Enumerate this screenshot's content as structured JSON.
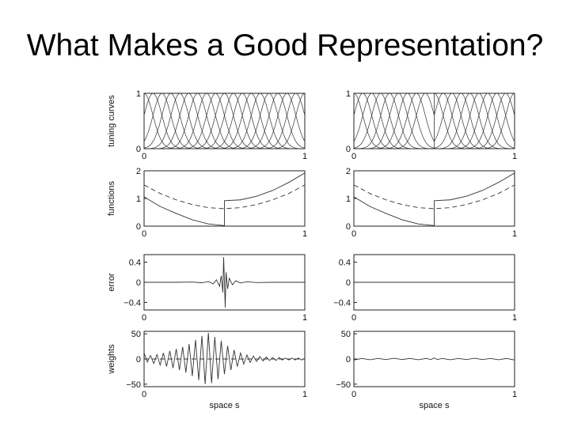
{
  "slide": {
    "title": "What Makes a Good Representation?"
  },
  "chart_data": [
    {
      "type": "line",
      "panel": "tuning-curves-left",
      "ylabel": "tuning curves",
      "xlim": [
        0,
        1
      ],
      "ylim": [
        0,
        1
      ],
      "xticks": [
        "0",
        "1"
      ],
      "yticks": [
        {
          "v": 0,
          "label": "0"
        },
        {
          "v": 1,
          "label": "1"
        }
      ],
      "curve_family": {
        "shape": "gaussian",
        "count": 19,
        "centers_from": 0,
        "centers_to": 1,
        "width": 0.055,
        "peak": 1,
        "discontinuity_at": null
      },
      "series": []
    },
    {
      "type": "line",
      "panel": "tuning-curves-right",
      "ylabel": "",
      "xlim": [
        0,
        1
      ],
      "ylim": [
        0,
        1
      ],
      "xticks": [
        "0",
        "1"
      ],
      "yticks": [
        {
          "v": 0,
          "label": "0"
        },
        {
          "v": 1,
          "label": "1"
        }
      ],
      "curve_family": {
        "shape": "gaussian",
        "count": 19,
        "centers_from": 0,
        "centers_to": 1,
        "width": 0.055,
        "peak": 1,
        "discontinuity_at": 0.5
      },
      "series": []
    },
    {
      "type": "line",
      "panel": "functions-left",
      "ylabel": "functions",
      "xlim": [
        0,
        1
      ],
      "ylim": [
        0,
        2
      ],
      "xticks": [
        "0",
        "1"
      ],
      "yticks": [
        {
          "v": 0,
          "label": "0"
        },
        {
          "v": 1,
          "label": "1"
        },
        {
          "v": 2,
          "label": "2"
        }
      ],
      "series": [
        {
          "style": "solid",
          "x": [
            0,
            0.1,
            0.2,
            0.3,
            0.4,
            0.5,
            0.5,
            0.6,
            0.7,
            0.8,
            0.9,
            1.0
          ],
          "y": [
            1.06,
            0.71,
            0.46,
            0.23,
            0.08,
            0.02,
            0.92,
            0.95,
            1.08,
            1.29,
            1.58,
            1.92
          ]
        },
        {
          "style": "dashed",
          "x": [
            0,
            0.1,
            0.2,
            0.3,
            0.4,
            0.5,
            0.6,
            0.7,
            0.8,
            0.9,
            1.0
          ],
          "y": [
            1.49,
            1.18,
            0.95,
            0.78,
            0.67,
            0.63,
            0.67,
            0.78,
            0.95,
            1.18,
            1.49
          ]
        }
      ]
    },
    {
      "type": "line",
      "panel": "functions-right",
      "ylabel": "",
      "xlim": [
        0,
        1
      ],
      "ylim": [
        0,
        2
      ],
      "xticks": [
        "0",
        "1"
      ],
      "yticks": [
        {
          "v": 0,
          "label": "0"
        },
        {
          "v": 1,
          "label": "1"
        },
        {
          "v": 2,
          "label": "2"
        }
      ],
      "series": [
        {
          "style": "solid",
          "x": [
            0,
            0.1,
            0.2,
            0.3,
            0.4,
            0.5,
            0.5,
            0.6,
            0.7,
            0.8,
            0.9,
            1.0
          ],
          "y": [
            1.06,
            0.71,
            0.46,
            0.23,
            0.08,
            0.02,
            0.92,
            0.95,
            1.08,
            1.29,
            1.58,
            1.92
          ]
        },
        {
          "style": "dashed",
          "x": [
            0,
            0.1,
            0.2,
            0.3,
            0.4,
            0.5,
            0.6,
            0.7,
            0.8,
            0.9,
            1.0
          ],
          "y": [
            1.49,
            1.18,
            0.95,
            0.78,
            0.67,
            0.63,
            0.67,
            0.78,
            0.95,
            1.18,
            1.49
          ]
        }
      ]
    },
    {
      "type": "line",
      "panel": "error-left",
      "ylabel": "error",
      "xlim": [
        0,
        1
      ],
      "ylim": [
        -0.55,
        0.55
      ],
      "xticks": [
        "0",
        "1"
      ],
      "yticks": [
        {
          "v": 0.4,
          "label": "0.4"
        },
        {
          "v": 0,
          "label": "0"
        },
        {
          "v": -0.4,
          "label": "−0.4"
        }
      ],
      "series": [
        {
          "style": "solid",
          "x": [
            0,
            0.2,
            0.3,
            0.36,
            0.4,
            0.43,
            0.45,
            0.47,
            0.48,
            0.49,
            0.495,
            0.5,
            0.505,
            0.51,
            0.52,
            0.53,
            0.55,
            0.57,
            0.6,
            0.64,
            0.7,
            0.8,
            1.0
          ],
          "y": [
            0,
            0,
            0.005,
            -0.01,
            0.015,
            -0.03,
            0.05,
            -0.08,
            0.13,
            -0.2,
            0.5,
            0,
            -0.5,
            0.2,
            -0.13,
            0.08,
            -0.05,
            0.03,
            -0.015,
            0.01,
            -0.005,
            0,
            0
          ]
        }
      ]
    },
    {
      "type": "line",
      "panel": "error-right",
      "ylabel": "",
      "xlim": [
        0,
        1
      ],
      "ylim": [
        -0.55,
        0.55
      ],
      "xticks": [
        "0",
        "1"
      ],
      "yticks": [
        {
          "v": 0.4,
          "label": "0.4"
        },
        {
          "v": 0,
          "label": "0"
        },
        {
          "v": -0.4,
          "label": "−0.4"
        }
      ],
      "series": [
        {
          "style": "solid",
          "x": [
            0,
            1
          ],
          "y": [
            0,
            0
          ]
        }
      ]
    },
    {
      "type": "line",
      "panel": "weights-left",
      "ylabel": "weights",
      "xlabel": "space s",
      "xlim": [
        0,
        1
      ],
      "ylim": [
        -55,
        55
      ],
      "xticks": [
        "0",
        "1"
      ],
      "yticks": [
        {
          "v": 50,
          "label": "50"
        },
        {
          "v": 0,
          "label": "0"
        },
        {
          "v": -50,
          "label": "−50"
        }
      ],
      "series": [
        {
          "style": "solid",
          "x": [
            0,
            0.02,
            0.04,
            0.06,
            0.08,
            0.1,
            0.12,
            0.14,
            0.16,
            0.18,
            0.2,
            0.22,
            0.24,
            0.26,
            0.28,
            0.3,
            0.32,
            0.34,
            0.36,
            0.38,
            0.4,
            0.42,
            0.44,
            0.46,
            0.48,
            0.5,
            0.52,
            0.54,
            0.56,
            0.58,
            0.6,
            0.62,
            0.64,
            0.66,
            0.68,
            0.7,
            0.72,
            0.74,
            0.76,
            0.78,
            0.8,
            0.82,
            0.84,
            0.86,
            0.88,
            0.9,
            0.92,
            0.94,
            0.96,
            0.98,
            1.0
          ],
          "y": [
            12,
            -6,
            7,
            -9,
            9,
            -12,
            12,
            -15,
            16,
            -18,
            20,
            -22,
            24,
            -27,
            30,
            -34,
            38,
            -42,
            46,
            -50,
            52,
            -48,
            44,
            -40,
            36,
            -30,
            26,
            -22,
            18,
            -15,
            12,
            -10,
            8,
            -7,
            6,
            -5,
            5,
            -4,
            4,
            -3,
            3,
            -3,
            3,
            -2,
            2,
            -2,
            2,
            -2,
            2,
            -2,
            1
          ]
        },
        {
          "style": "dashed",
          "x": [
            0,
            1
          ],
          "y": [
            0,
            0
          ]
        }
      ]
    },
    {
      "type": "line",
      "panel": "weights-right",
      "ylabel": "",
      "xlabel": "space s",
      "xlim": [
        0,
        1
      ],
      "ylim": [
        -55,
        55
      ],
      "xticks": [
        "0",
        "1"
      ],
      "yticks": [
        {
          "v": 50,
          "label": "50"
        },
        {
          "v": 0,
          "label": "0"
        },
        {
          "v": -50,
          "label": "−50"
        }
      ],
      "series": [
        {
          "style": "solid",
          "x": [
            0,
            0.05,
            0.1,
            0.15,
            0.2,
            0.25,
            0.3,
            0.35,
            0.4,
            0.45,
            0.48,
            0.5,
            0.52,
            0.55,
            0.6,
            0.65,
            0.7,
            0.75,
            0.8,
            0.85,
            0.9,
            0.95,
            1.0
          ],
          "y": [
            -2,
            1,
            -1.5,
            1,
            -1,
            1.5,
            -1,
            1,
            -1.5,
            1,
            -1,
            2,
            -1,
            1,
            -1.5,
            1,
            -1,
            1.5,
            -1,
            1,
            -1.5,
            1,
            -2
          ]
        }
      ]
    }
  ]
}
